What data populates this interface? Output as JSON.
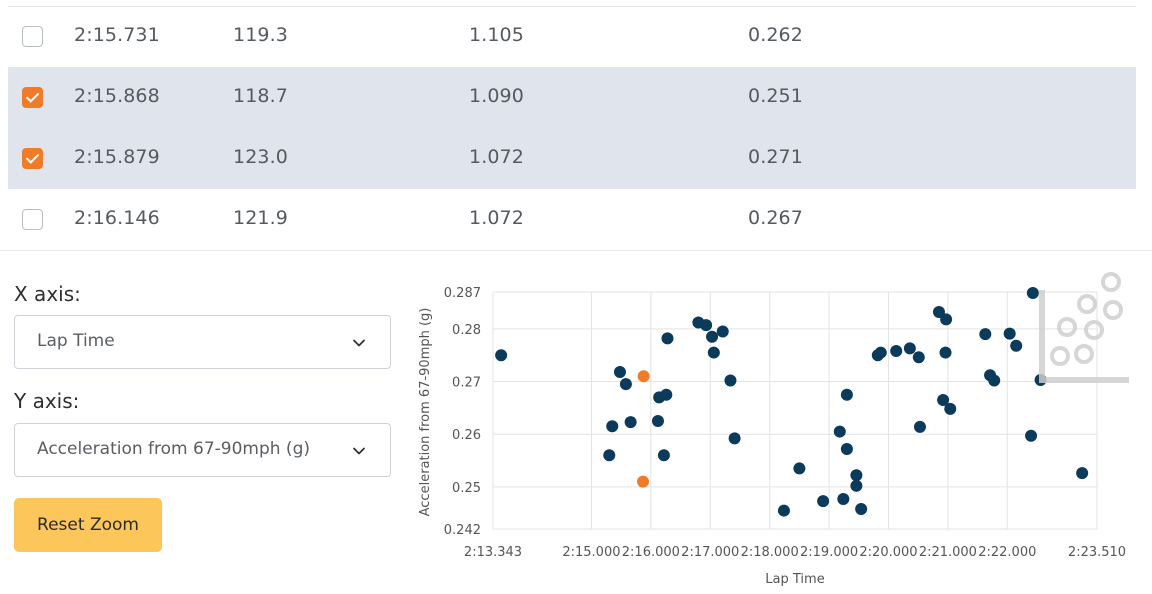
{
  "table": {
    "rows": [
      {
        "checked": false,
        "lap_time": "2:15.731",
        "col2": "119.3",
        "col3": "1.105",
        "col4": "0.262"
      },
      {
        "checked": true,
        "lap_time": "2:15.868",
        "col2": "118.7",
        "col3": "1.090",
        "col4": "0.251"
      },
      {
        "checked": true,
        "lap_time": "2:15.879",
        "col2": "123.0",
        "col3": "1.072",
        "col4": "0.271"
      },
      {
        "checked": false,
        "lap_time": "2:16.146",
        "col2": "121.9",
        "col3": "1.072",
        "col4": "0.267"
      }
    ]
  },
  "controls": {
    "x_axis_label": "X axis:",
    "x_axis_value": "Lap Time",
    "y_axis_label": "Y axis:",
    "y_axis_value": "Acceleration from 67-90mph (g)",
    "reset_zoom": "Reset Zoom"
  },
  "icons": {
    "dropdown": "chevron-down-icon",
    "checkbox_checked": "check-icon",
    "logo": "dots-logo-icon"
  },
  "colors": {
    "accent_orange": "#f07c2a",
    "selected_row": "#e0e4ec",
    "point_default": "#0b3a5a",
    "point_selected": "#f07c2a",
    "reset_button": "#fdc65a"
  },
  "chart_data": {
    "type": "scatter",
    "xlabel": "Lap Time",
    "ylabel": "Acceleration from 67-90mph (g)",
    "xlim": [
      133.343,
      143.51
    ],
    "ylim": [
      0.242,
      0.287
    ],
    "x_ticks": [
      {
        "v": 133.343,
        "label": "2:13.343"
      },
      {
        "v": 135.0,
        "label": "2:15.000"
      },
      {
        "v": 136.0,
        "label": "2:16.000"
      },
      {
        "v": 137.0,
        "label": "2:17.000"
      },
      {
        "v": 138.0,
        "label": "2:18.000"
      },
      {
        "v": 139.0,
        "label": "2:19.000"
      },
      {
        "v": 140.0,
        "label": "2:20.000"
      },
      {
        "v": 141.0,
        "label": "2:21.000"
      },
      {
        "v": 142.0,
        "label": "2:22.000"
      },
      {
        "v": 143.51,
        "label": "2:23.510"
      }
    ],
    "y_ticks": [
      {
        "v": 0.242,
        "label": "0.242"
      },
      {
        "v": 0.25,
        "label": "0.25"
      },
      {
        "v": 0.26,
        "label": "0.26"
      },
      {
        "v": 0.27,
        "label": "0.27"
      },
      {
        "v": 0.28,
        "label": "0.28"
      },
      {
        "v": 0.287,
        "label": "0.287"
      }
    ],
    "grid": true,
    "series": [
      {
        "name": "",
        "color": "#0b3a5a",
        "points": [
          [
            133.48,
            0.275
          ],
          [
            135.3,
            0.256
          ],
          [
            135.35,
            0.2615
          ],
          [
            135.48,
            0.2718
          ],
          [
            135.58,
            0.2695
          ],
          [
            135.66,
            0.2623
          ],
          [
            136.12,
            0.2625
          ],
          [
            136.14,
            0.267
          ],
          [
            136.22,
            0.256
          ],
          [
            136.26,
            0.2675
          ],
          [
            136.28,
            0.2782
          ],
          [
            136.8,
            0.2812
          ],
          [
            136.93,
            0.2807
          ],
          [
            137.03,
            0.2785
          ],
          [
            137.06,
            0.2755
          ],
          [
            137.21,
            0.2795
          ],
          [
            137.34,
            0.2702
          ],
          [
            137.41,
            0.2592
          ],
          [
            138.24,
            0.2455
          ],
          [
            138.5,
            0.2535
          ],
          [
            138.9,
            0.2473
          ],
          [
            139.18,
            0.2605
          ],
          [
            139.24,
            0.2477
          ],
          [
            139.3,
            0.2572
          ],
          [
            139.3,
            0.2675
          ],
          [
            139.46,
            0.2522
          ],
          [
            139.46,
            0.2502
          ],
          [
            139.54,
            0.2458
          ],
          [
            139.82,
            0.275
          ],
          [
            139.87,
            0.2755
          ],
          [
            140.13,
            0.2758
          ],
          [
            140.36,
            0.2763
          ],
          [
            140.51,
            0.2746
          ],
          [
            140.53,
            0.2614
          ],
          [
            140.85,
            0.2832
          ],
          [
            140.92,
            0.2665
          ],
          [
            140.96,
            0.2755
          ],
          [
            140.97,
            0.2818
          ],
          [
            141.04,
            0.2648
          ],
          [
            141.63,
            0.279
          ],
          [
            141.71,
            0.2712
          ],
          [
            141.78,
            0.2702
          ],
          [
            142.04,
            0.2791
          ],
          [
            142.15,
            0.2768
          ],
          [
            142.4,
            0.2597
          ],
          [
            142.43,
            0.2868
          ],
          [
            142.56,
            0.2703
          ],
          [
            143.26,
            0.2526
          ]
        ]
      },
      {
        "name": "",
        "color": "#f07c2a",
        "points": [
          [
            135.868,
            0.251
          ],
          [
            135.879,
            0.271
          ]
        ]
      }
    ]
  }
}
